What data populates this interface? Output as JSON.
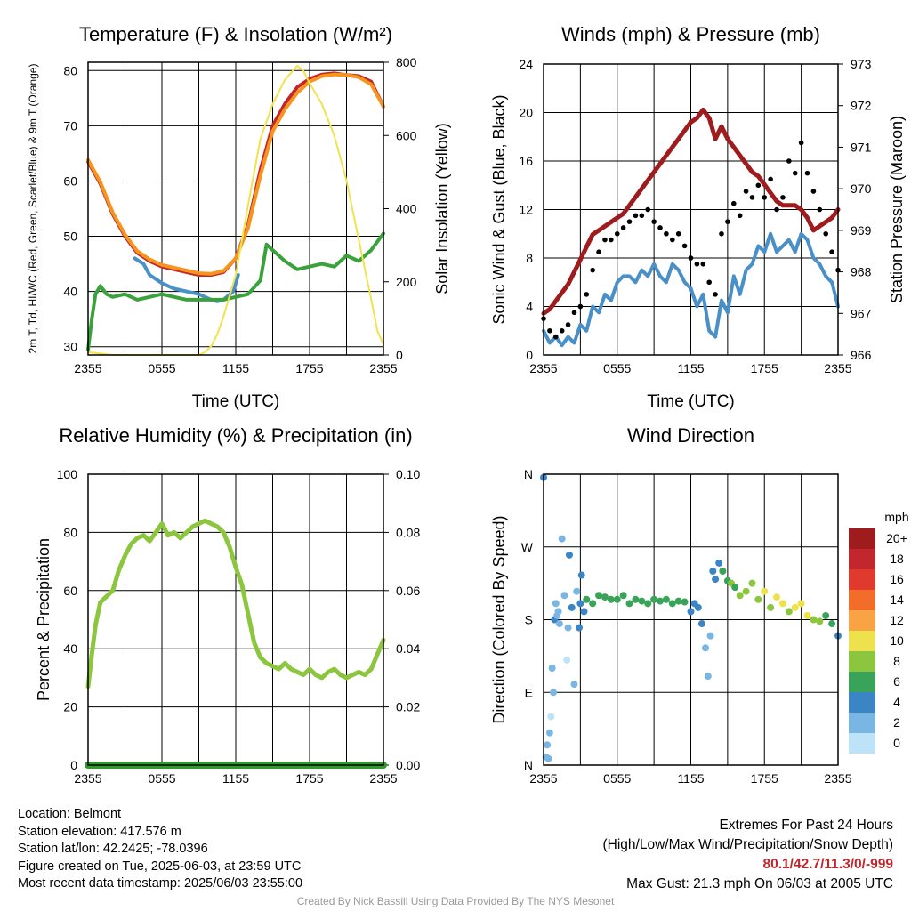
{
  "chart_data": [
    {
      "type": "line",
      "title": "Temperature (F) & Insolation (W/m²)",
      "xlabel": "Time (UTC)",
      "ylabel": "2m T, Td, HI/WC (Red, Green, Scarlet/Blue) & 9m T (Orange)",
      "ylabel_right": "Solar Insolation (Yellow)",
      "x_ticks": [
        "2355",
        "0555",
        "1155",
        "1755",
        "2355"
      ],
      "xlim": [
        0,
        24
      ],
      "ylim": [
        28.5,
        81.5
      ],
      "y_ticks": [
        30,
        40,
        50,
        60,
        70,
        80
      ],
      "ylim_right": [
        0,
        840
      ],
      "y_ticks_right": [
        0,
        200,
        400,
        600,
        800
      ],
      "grid": true,
      "series": [
        {
          "name": "2m T",
          "color": "#c1272d",
          "axis": "left",
          "x": [
            0,
            1,
            2,
            3,
            4,
            5,
            6,
            7,
            8,
            9,
            10,
            11,
            12,
            13,
            14,
            15,
            16,
            17,
            18,
            19,
            20,
            21,
            22,
            23,
            24
          ],
          "y": [
            63.5,
            59.5,
            54,
            50,
            47,
            45.5,
            44.5,
            44,
            43.5,
            43,
            43,
            43.5,
            46,
            52,
            62,
            70,
            74,
            77,
            78.5,
            79.3,
            79.5,
            79.2,
            79,
            78,
            73.5
          ]
        },
        {
          "name": "9m T",
          "color": "#f7941d",
          "axis": "left",
          "x": [
            0,
            1,
            2,
            3,
            4,
            5,
            6,
            7,
            8,
            9,
            10,
            11,
            12,
            13,
            14,
            15,
            16,
            17,
            18,
            19,
            20,
            21,
            22,
            23,
            24
          ],
          "y": [
            63.8,
            59.8,
            54.3,
            50.3,
            47.3,
            45.8,
            44.8,
            44.3,
            43.8,
            43.3,
            43.2,
            43.7,
            46,
            51.5,
            61,
            69,
            73,
            76,
            78,
            79,
            79.3,
            79.2,
            78.8,
            77.5,
            73.5
          ]
        },
        {
          "name": "HI/WC",
          "color": "#4a90c8",
          "axis": "left",
          "x": [
            3.8,
            4.5,
            5,
            6,
            7,
            8,
            9,
            9.5,
            10,
            10.5,
            11,
            11.8,
            12.2
          ],
          "y": [
            46,
            45,
            43,
            41.5,
            40.5,
            40,
            39.5,
            39,
            38.5,
            38.2,
            38.5,
            40,
            43
          ]
        },
        {
          "name": "Td",
          "color": "#3aa23a",
          "axis": "left",
          "x": [
            0,
            0.3,
            0.6,
            1,
            1.5,
            2,
            3,
            4,
            5,
            6,
            7,
            8,
            9,
            10,
            11,
            12,
            13,
            14,
            14.5,
            15,
            16,
            17,
            18,
            19,
            20,
            21,
            22,
            23,
            24
          ],
          "y": [
            29.5,
            35,
            39.5,
            41,
            39.5,
            39,
            39.5,
            38.5,
            39,
            39.5,
            39,
            38.5,
            38.5,
            38.5,
            38.5,
            39,
            39.5,
            42,
            48.5,
            47.5,
            45.5,
            44,
            44.5,
            45,
            44.5,
            46.5,
            45.5,
            47.5,
            50.5
          ]
        },
        {
          "name": "Solar Insolation",
          "color": "#f2e24b",
          "axis": "right",
          "x": [
            0,
            1,
            2,
            3,
            4,
            5,
            6,
            7,
            8,
            9,
            9.5,
            10,
            10.5,
            11,
            12,
            13,
            14,
            15,
            16,
            17,
            17.5,
            18,
            19,
            20,
            21,
            22,
            23,
            23.5,
            24
          ],
          "y": [
            8,
            4,
            0,
            0,
            0,
            0,
            0,
            0,
            0,
            0,
            8,
            25,
            60,
            110,
            230,
            430,
            620,
            720,
            790,
            830,
            815,
            780,
            720,
            630,
            500,
            330,
            160,
            70,
            30
          ]
        }
      ]
    },
    {
      "type": "line",
      "title": "Winds (mph) & Pressure (mb)",
      "xlabel": "Time (UTC)",
      "ylabel": "Sonic Wind & Gust (Blue, Black)",
      "ylabel_right": "Station Pressure (Maroon)",
      "x_ticks": [
        "2355",
        "0555",
        "1155",
        "1755",
        "2355"
      ],
      "xlim": [
        0,
        24
      ],
      "ylim": [
        0,
        24
      ],
      "y_ticks": [
        0,
        4,
        8,
        12,
        16,
        20,
        24
      ],
      "ylim_right": [
        966,
        973
      ],
      "y_ticks_right": [
        966,
        967,
        968,
        969,
        970,
        971,
        972,
        973
      ],
      "grid": true,
      "series": [
        {
          "name": "Sonic Wind",
          "color": "#4a90c8",
          "axis": "left",
          "x": [
            0,
            0.5,
            1,
            1.5,
            2,
            2.5,
            3,
            3.5,
            4,
            4.5,
            5,
            5.5,
            6,
            6.5,
            7,
            7.5,
            8,
            8.5,
            9,
            9.5,
            10,
            10.5,
            11,
            11.5,
            12,
            12.5,
            13,
            13.5,
            14,
            14.5,
            15,
            15.5,
            16,
            16.5,
            17,
            17.5,
            18,
            18.5,
            19,
            19.5,
            20,
            20.5,
            21,
            21.5,
            22,
            22.5,
            23,
            23.5,
            24
          ],
          "y": [
            2,
            1,
            1.5,
            0.8,
            1.5,
            1,
            2.5,
            2,
            4,
            3.5,
            5,
            4.5,
            6,
            6.5,
            6.5,
            6,
            7,
            6.5,
            7.5,
            6.5,
            6,
            7.5,
            7,
            6,
            5.5,
            4,
            5,
            2,
            1.5,
            4.5,
            3.5,
            6.5,
            5,
            7,
            7.5,
            9,
            8.5,
            10,
            8.5,
            9,
            9.5,
            8.5,
            10,
            9.5,
            8,
            7.5,
            6.5,
            6,
            4
          ]
        },
        {
          "name": "Gust",
          "color": "#000000",
          "axis": "left",
          "x": [
            0,
            0.5,
            1,
            1.5,
            2,
            2.5,
            3,
            3.5,
            4,
            4.5,
            5,
            5.5,
            6,
            6.5,
            7,
            7.5,
            8,
            8.5,
            9,
            9.5,
            10,
            10.5,
            11,
            11.5,
            12,
            12.5,
            13,
            13.5,
            14,
            14.5,
            15,
            15.5,
            16,
            16.5,
            17,
            17.5,
            18,
            18.5,
            19,
            19.5,
            20,
            20.5,
            21,
            21.5,
            22,
            22.5,
            23,
            23.5,
            24
          ],
          "y": [
            3,
            2,
            1.5,
            2,
            2.5,
            3.5,
            4,
            5,
            7,
            8.5,
            9.5,
            9.5,
            10,
            10.5,
            11,
            11.5,
            11.5,
            12,
            11,
            10.5,
            10,
            9.5,
            10,
            9,
            8,
            7.5,
            7.5,
            6,
            5,
            10,
            11,
            12.5,
            11.5,
            13.5,
            13,
            14,
            13,
            14.5,
            12,
            13,
            16,
            15,
            17.5,
            15,
            13.5,
            12,
            10,
            8.5,
            7
          ]
        },
        {
          "name": "Station Pressure",
          "color": "#9e1b1e",
          "axis": "right",
          "x": [
            0,
            0.5,
            1,
            1.5,
            2,
            2.5,
            3,
            3.5,
            4,
            4.5,
            5,
            5.5,
            6,
            6.5,
            7,
            7.5,
            8,
            8.5,
            9,
            9.5,
            10,
            10.5,
            11,
            11.5,
            12,
            12.5,
            13,
            13.5,
            14,
            14.5,
            15,
            15.5,
            16,
            16.5,
            17,
            17.5,
            18,
            18.5,
            19,
            19.5,
            20,
            20.5,
            21,
            21.5,
            22,
            22.5,
            23,
            23.5,
            24
          ],
          "y": [
            967.0,
            967.1,
            967.3,
            967.5,
            967.7,
            968.0,
            968.3,
            968.6,
            968.9,
            969.0,
            969.1,
            969.2,
            969.3,
            969.4,
            969.6,
            969.8,
            970.0,
            970.2,
            970.4,
            970.6,
            970.8,
            971.0,
            971.2,
            971.4,
            971.6,
            971.7,
            971.9,
            971.7,
            971.2,
            971.5,
            971.2,
            971.0,
            970.8,
            970.6,
            970.4,
            970.3,
            970.1,
            969.9,
            969.7,
            969.6,
            969.6,
            969.6,
            969.5,
            969.3,
            969.0,
            969.1,
            969.2,
            969.3,
            969.5
          ]
        }
      ]
    },
    {
      "type": "line",
      "title": "Relative Humidity (%) & Precipitation (in)",
      "xlabel": "",
      "ylabel": "Percent & Precipitation",
      "x_ticks": [
        "2355",
        "0555",
        "1155",
        "1755",
        "2355"
      ],
      "xlim": [
        0,
        24
      ],
      "ylim": [
        0,
        100
      ],
      "y_ticks": [
        0,
        20,
        40,
        60,
        80,
        100
      ],
      "ylim_right": [
        0,
        0.1
      ],
      "y_ticks_right": [
        "0.00",
        "0.02",
        "0.04",
        "0.06",
        "0.08",
        "0.10"
      ],
      "grid": true,
      "series": [
        {
          "name": "Relative Humidity",
          "color": "#8cc63f",
          "axis": "left",
          "x": [
            0,
            0.3,
            0.6,
            1,
            1.5,
            2,
            2.5,
            3,
            3.5,
            4,
            4.5,
            5,
            5.5,
            6,
            6.5,
            7,
            7.5,
            8,
            8.5,
            9,
            9.5,
            10,
            10.5,
            11,
            11.5,
            12,
            12.5,
            13,
            13.5,
            14,
            14.5,
            15,
            15.5,
            16,
            16.5,
            17,
            17.5,
            18,
            18.5,
            19,
            19.5,
            20,
            20.5,
            21,
            21.5,
            22,
            22.5,
            23,
            23.5,
            24
          ],
          "y": [
            27,
            38,
            48,
            56,
            58,
            60,
            67,
            72,
            76,
            78,
            79,
            77,
            80,
            83,
            79,
            80,
            78,
            80,
            82,
            83,
            84,
            83,
            82,
            80,
            75,
            68,
            62,
            52,
            42,
            37,
            35,
            34,
            33,
            35,
            33,
            32,
            31,
            33,
            31,
            30,
            32,
            33,
            31,
            30,
            31,
            32,
            31,
            33,
            38,
            43
          ]
        },
        {
          "name": "Precipitation",
          "color": "#2e9a2e",
          "axis": "right",
          "x": [
            0,
            24
          ],
          "y": [
            0,
            0
          ]
        }
      ]
    },
    {
      "type": "scatter",
      "title": "Wind Direction",
      "ylabel": "Direction (Colored By Speed)",
      "x_ticks": [
        "2355",
        "0555",
        "1155",
        "1755",
        "2355"
      ],
      "xlim": [
        0,
        24
      ],
      "y_ticks": [
        "N",
        "E",
        "S",
        "W",
        "N"
      ],
      "ylim": [
        0,
        360
      ],
      "colorbar_title": "mph",
      "colorbar_labels": [
        "20+",
        "18",
        "16",
        "14",
        "12",
        "10",
        "8",
        "6",
        "4",
        "2",
        "0"
      ],
      "colorbar_colors": [
        "#9e1b1e",
        "#c1272d",
        "#e03a2f",
        "#f26c2a",
        "#f9a345",
        "#ede24d",
        "#8cc63f",
        "#3aa35a",
        "#3b85c4",
        "#79b6e3",
        "#bde3f8"
      ],
      "points_x": [
        0,
        0.2,
        0.3,
        0.4,
        0.5,
        0.6,
        0.7,
        0.8,
        0.9,
        1.0,
        1.1,
        1.2,
        1.3,
        1.5,
        1.7,
        1.9,
        2.0,
        2.1,
        2.3,
        2.5,
        2.7,
        2.9,
        3.0,
        3.1,
        3.3,
        3.5,
        4.0,
        4.5,
        5.0,
        5.5,
        6.0,
        6.5,
        7.0,
        7.5,
        8.0,
        8.5,
        9.0,
        9.5,
        10.0,
        10.5,
        11.0,
        11.5,
        12.0,
        12.3,
        12.6,
        12.9,
        13.2,
        13.4,
        13.6,
        13.8,
        14.0,
        14.3,
        14.6,
        15.0,
        15.3,
        15.6,
        16.0,
        16.5,
        17.0,
        17.5,
        18.0,
        18.5,
        19.0,
        19.5,
        20.0,
        20.5,
        21.0,
        21.5,
        22.0,
        22.5,
        23.0,
        23.5,
        24.0
      ],
      "points_y": [
        356,
        10,
        25,
        8,
        40,
        60,
        120,
        90,
        180,
        200,
        185,
        190,
        175,
        280,
        210,
        130,
        170,
        260,
        195,
        100,
        215,
        170,
        200,
        235,
        190,
        205,
        200,
        210,
        208,
        205,
        205,
        210,
        200,
        205,
        203,
        200,
        205,
        203,
        205,
        200,
        203,
        202,
        190,
        200,
        195,
        175,
        145,
        110,
        160,
        240,
        230,
        250,
        240,
        228,
        225,
        220,
        210,
        215,
        225,
        205,
        215,
        195,
        208,
        200,
        190,
        195,
        200,
        185,
        180,
        178,
        185,
        175,
        160
      ],
      "points_speed": [
        4,
        2,
        2,
        1,
        1,
        0,
        1,
        2,
        3,
        2,
        1,
        1,
        2,
        1,
        2,
        0,
        2,
        3,
        4,
        1,
        2,
        3,
        4,
        3,
        4,
        5,
        5,
        6,
        6,
        6,
        5,
        6,
        6,
        6,
        6,
        6,
        6,
        6,
        6,
        6,
        5,
        5,
        4,
        4,
        4,
        3,
        2,
        1,
        2,
        4,
        4,
        4,
        5,
        6,
        7,
        6,
        8,
        7,
        8,
        8,
        9,
        8,
        9,
        10,
        8,
        9,
        10,
        9,
        8,
        7,
        6,
        5,
        4
      ]
    }
  ],
  "station": {
    "location": "Location: Belmont",
    "elevation": "Station elevation: 417.576 m",
    "latlon": "Station lat/lon: 42.2425; -78.0396",
    "created": "Figure created on Tue, 2025-06-03, at 23:59 UTC",
    "recent": "Most recent data timestamp: 2025/06/03 23:55:00"
  },
  "extremes": {
    "title": "Extremes For Past 24 Hours",
    "subtitle": "(High/Low/Max Wind/Precipitation/Snow Depth)",
    "values": "80.1/42.7/11.3/0/-999",
    "gust": "Max Gust: 21.3 mph On 06/03 at 2005 UTC"
  },
  "credit": "Created By Nick Bassill Using Data Provided By The NYS Mesonet"
}
